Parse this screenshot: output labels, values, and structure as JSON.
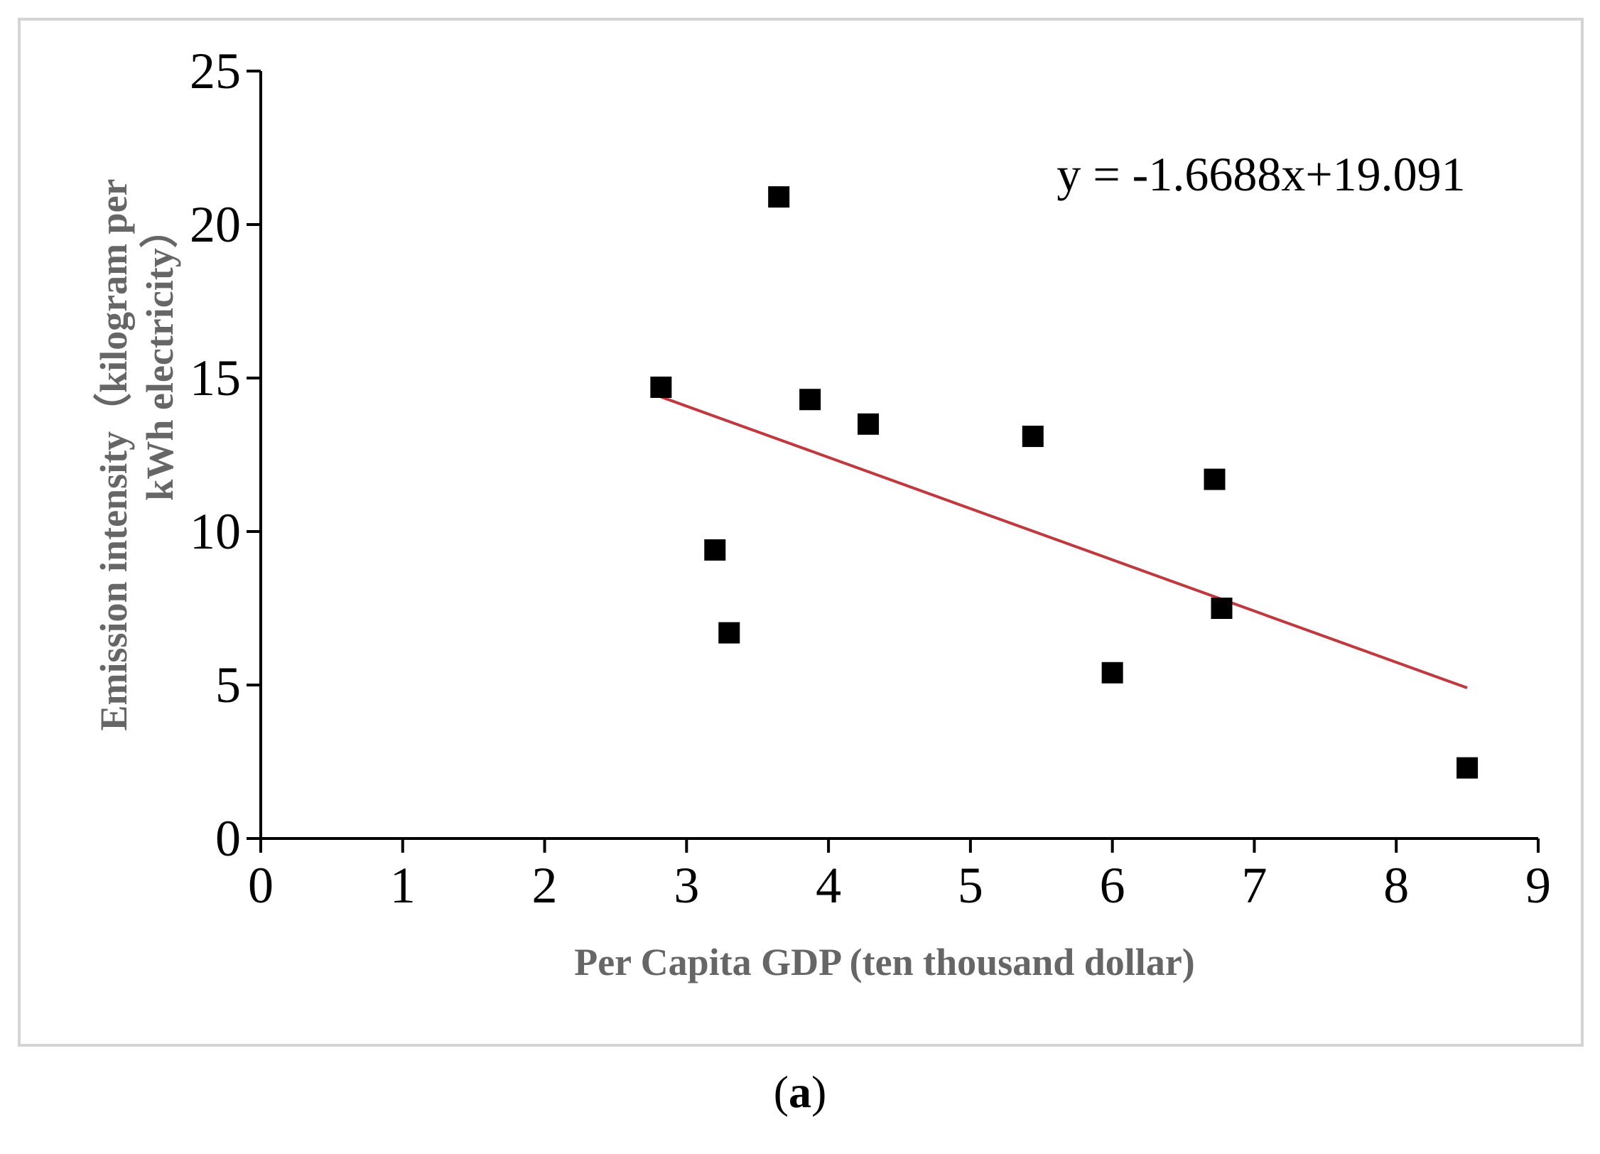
{
  "chart_data": {
    "type": "scatter",
    "title": "",
    "xlabel": "Per Capita GDP (ten thousand dollar)",
    "ylabel_lines": [
      "Emission intensity（kilogram per",
      "kWh electricity）"
    ],
    "xlim": [
      0,
      9
    ],
    "ylim": [
      0,
      25
    ],
    "xticks": [
      0,
      1,
      2,
      3,
      4,
      5,
      6,
      7,
      8,
      9
    ],
    "yticks": [
      0,
      5,
      10,
      15,
      20,
      25
    ],
    "grid": false,
    "points": [
      {
        "x": 2.82,
        "y": 14.7
      },
      {
        "x": 3.2,
        "y": 9.4
      },
      {
        "x": 3.3,
        "y": 6.7
      },
      {
        "x": 3.65,
        "y": 20.9
      },
      {
        "x": 3.87,
        "y": 14.3
      },
      {
        "x": 4.28,
        "y": 13.5
      },
      {
        "x": 5.44,
        "y": 13.1
      },
      {
        "x": 6.0,
        "y": 5.4
      },
      {
        "x": 6.72,
        "y": 11.7
      },
      {
        "x": 6.77,
        "y": 7.5
      },
      {
        "x": 8.5,
        "y": 2.3
      }
    ],
    "trendline": {
      "slope": -1.6688,
      "intercept": 19.091,
      "x_start": 2.82,
      "x_end": 8.5,
      "color": "#c0393f",
      "equation": "y = -1.6688x+19.091"
    },
    "marker_color": "#000000",
    "axis_label_color": "#666666"
  },
  "panel_label": {
    "open": "(",
    "letter": "a",
    "close": ")"
  }
}
